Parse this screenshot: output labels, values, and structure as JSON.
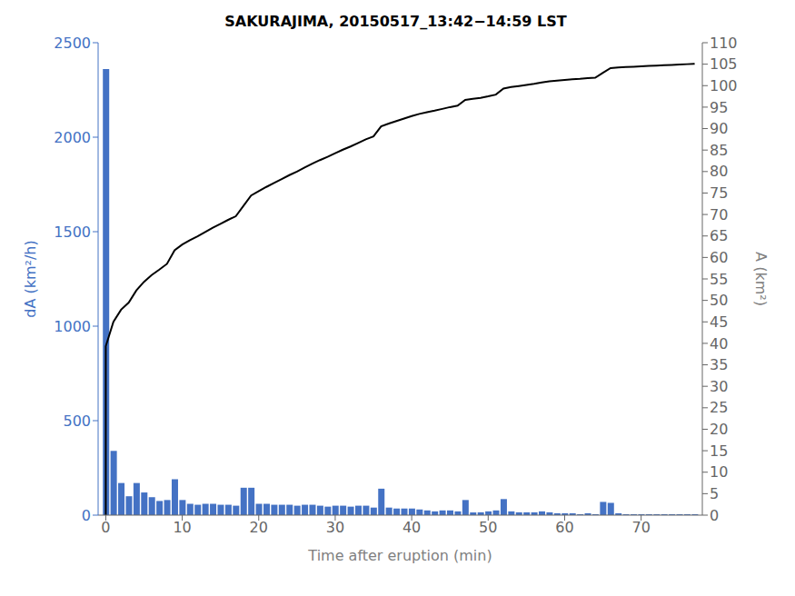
{
  "chart_data": {
    "type": "bar",
    "title": "SAKURAJIMA, 20150517_13:42−14:59 LST",
    "xlabel": "Time after eruption (min)",
    "ylabel": "dA (km²/h)",
    "y2label": "A (km²)",
    "x": [
      0,
      1,
      2,
      3,
      4,
      5,
      6,
      7,
      8,
      9,
      10,
      11,
      12,
      13,
      14,
      15,
      16,
      17,
      18,
      19,
      20,
      21,
      22,
      23,
      24,
      25,
      26,
      27,
      28,
      29,
      30,
      31,
      32,
      33,
      34,
      35,
      36,
      37,
      38,
      39,
      40,
      41,
      42,
      43,
      44,
      45,
      46,
      47,
      48,
      49,
      50,
      51,
      52,
      53,
      54,
      55,
      56,
      57,
      58,
      59,
      60,
      61,
      62,
      63,
      64,
      65,
      66,
      67,
      68,
      69,
      70,
      71,
      72,
      73,
      74,
      75,
      76,
      77
    ],
    "xlim": [
      -1,
      78
    ],
    "xticks": [
      0,
      10,
      20,
      30,
      40,
      50,
      60,
      70
    ],
    "ylim": [
      0,
      2500
    ],
    "yticks": [
      0,
      500,
      1000,
      1500,
      2000,
      2500
    ],
    "y2lim": [
      0,
      110
    ],
    "y2ticks": [
      0,
      5,
      10,
      15,
      20,
      25,
      30,
      35,
      40,
      45,
      50,
      55,
      60,
      65,
      70,
      75,
      80,
      85,
      90,
      95,
      100,
      105,
      110
    ],
    "series": [
      {
        "type": "bar",
        "color": "#4472C4",
        "values": [
          2360,
          340,
          170,
          100,
          170,
          120,
          95,
          75,
          80,
          190,
          80,
          60,
          55,
          60,
          60,
          55,
          55,
          50,
          145,
          145,
          60,
          60,
          55,
          55,
          55,
          50,
          55,
          55,
          50,
          45,
          50,
          50,
          45,
          50,
          50,
          40,
          140,
          40,
          35,
          35,
          35,
          30,
          25,
          20,
          25,
          25,
          20,
          80,
          15,
          15,
          20,
          25,
          85,
          20,
          15,
          15,
          15,
          20,
          15,
          10,
          10,
          10,
          5,
          10,
          5,
          70,
          65,
          10,
          5,
          5,
          5,
          5,
          5,
          5,
          5,
          5,
          5,
          5
        ]
      },
      {
        "type": "line",
        "color": "#000000",
        "axis": "y2",
        "x": [
          0,
          0,
          1,
          2,
          3,
          4,
          5,
          6,
          7,
          8,
          9,
          10,
          11,
          12,
          13,
          14,
          15,
          16,
          17,
          18,
          19,
          20,
          21,
          22,
          23,
          24,
          25,
          26,
          27,
          28,
          29,
          30,
          31,
          32,
          33,
          34,
          35,
          36,
          37,
          38,
          39,
          40,
          41,
          42,
          43,
          44,
          45,
          46,
          47,
          48,
          49,
          50,
          51,
          52,
          53,
          54,
          55,
          56,
          57,
          58,
          59,
          60,
          61,
          62,
          63,
          64,
          65,
          66,
          67,
          68,
          69,
          70,
          71,
          72,
          73,
          74,
          75,
          76,
          77
        ],
        "values": [
          0,
          39.33412,
          45.0009,
          47.83429,
          49.50099,
          52.33438,
          54.33442,
          55.917785,
          57.16781,
          58.50117,
          61.6679,
          63.00126,
          64.00128,
          64.917965,
          65.917985,
          66.918005,
          67.83469,
          68.751375,
          69.584725,
          72.00144,
          74.418155,
          75.418175,
          76.418195,
          77.33488,
          78.251565,
          79.16825,
          80.0016,
          80.918285,
          81.83497,
          82.66832,
          83.418335,
          84.251685,
          85.085035,
          85.83505,
          86.6684,
          87.50175,
          88.16843,
          90.50181,
          91.16849,
          91.751835,
          92.33518,
          92.918525,
          93.418535,
          93.83521,
          94.16855,
          94.585225,
          95.0019,
          95.33524,
          96.6686,
          96.918605,
          97.16861,
          97.50195,
          97.918625,
          99.33532,
          99.66866,
          99.918665,
          100.16867,
          100.418675,
          100.752015,
          101.00202,
          101.16869,
          101.33536,
          101.50203,
          101.585365,
          101.752035,
          101.83537,
          103.00206,
          104.085415,
          104.252085,
          104.33542,
          104.418755,
          104.50209,
          104.585425,
          104.66876,
          104.752095,
          104.83543,
          104.918765,
          105.0021,
          105.085435
        ]
      }
    ]
  }
}
